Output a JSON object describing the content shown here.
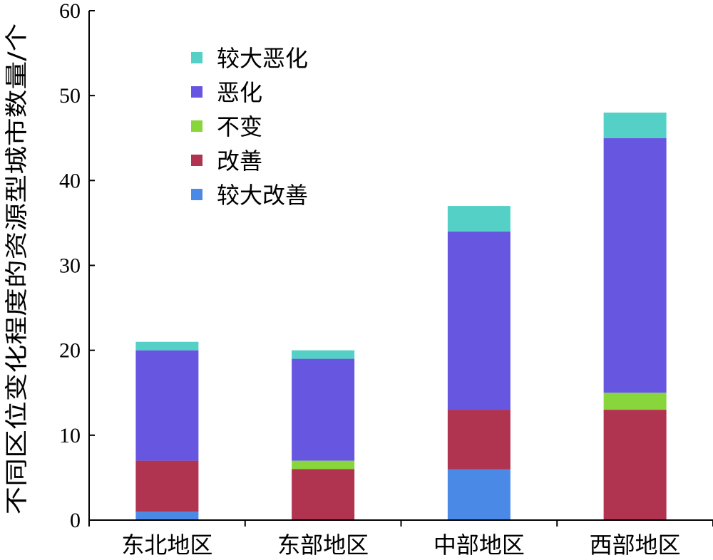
{
  "chart_data": {
    "type": "bar",
    "stacked": true,
    "categories": [
      "东北地区",
      "东部地区",
      "中部地区",
      "西部地区"
    ],
    "series": [
      {
        "name": "较大改善",
        "color": "#4a8ae6",
        "values": [
          1,
          0,
          6,
          0
        ]
      },
      {
        "name": "改善",
        "color": "#b03350",
        "values": [
          6,
          6,
          7,
          13
        ]
      },
      {
        "name": "不变",
        "color": "#88d63c",
        "values": [
          0,
          1,
          0,
          2
        ]
      },
      {
        "name": "恶化",
        "color": "#6656e0",
        "values": [
          13,
          12,
          21,
          30
        ]
      },
      {
        "name": "较大恶化",
        "color": "#55d0c6",
        "values": [
          1,
          1,
          3,
          3
        ]
      }
    ],
    "title": "",
    "xlabel": "",
    "ylabel": "不同区位变化程度的资源型城市数量/个",
    "ylim": [
      0,
      60
    ],
    "yticks": [
      0,
      10,
      20,
      30,
      40,
      50,
      60
    ],
    "grid": false,
    "legend_position": "top-left"
  }
}
